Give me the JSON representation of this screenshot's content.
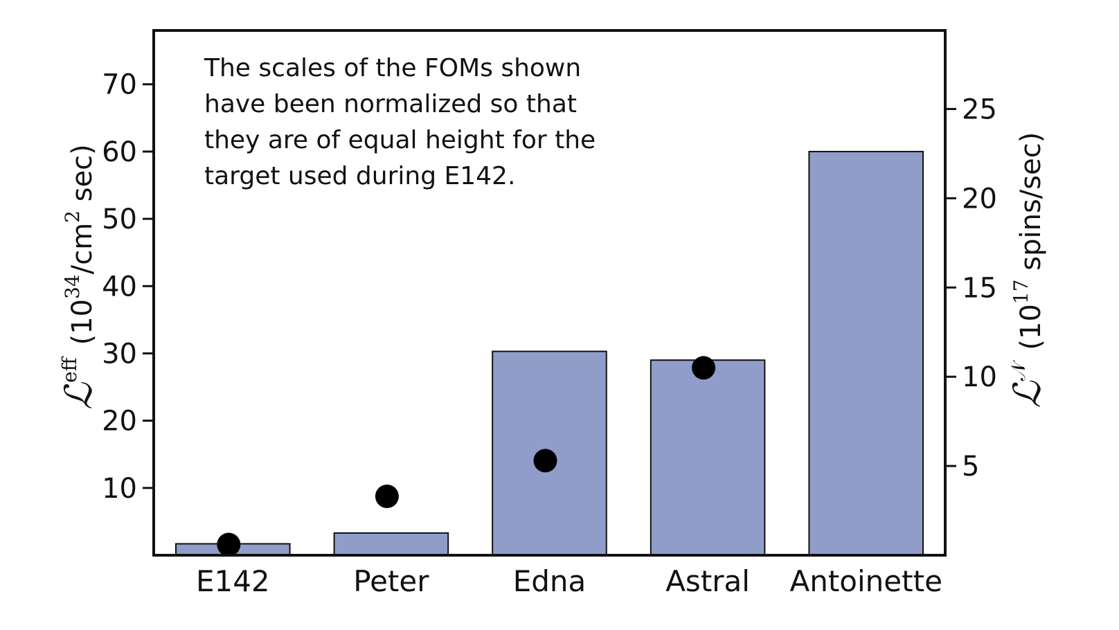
{
  "chart_data": {
    "type": "bar",
    "categories": [
      "E142",
      "Peter",
      "Edna",
      "Astral",
      "Antoinette"
    ],
    "series": [
      {
        "values": [
          1.7,
          3.3,
          30.3,
          29.0,
          60.0
        ],
        "axis": "left",
        "mark": "bar",
        "color": "#919dc9"
      },
      {
        "values": [
          0.6,
          3.3,
          5.3,
          10.5,
          null
        ],
        "axis": "right",
        "mark": "dot",
        "color": "#000000"
      }
    ],
    "y_left": {
      "label_symbol": "ℒ",
      "label_superscript": "eff",
      "label_units": "(10",
      "label_units_sup": "34",
      "label_units_rest": "/cm",
      "label_units_sup2": "2",
      "label_units_end": " sec)",
      "ylim": [
        0,
        78
      ],
      "ticks": [
        "10",
        "20",
        "30",
        "40",
        "50",
        "60",
        "70"
      ]
    },
    "y_right": {
      "label_symbol": "ℒ",
      "label_superscript": "𝒩",
      "label_units": "(10",
      "label_units_sup": "17",
      "label_units_end": " spins/sec)",
      "ylim": [
        0,
        29.4
      ],
      "ticks": [
        "5",
        "10",
        "15",
        "20",
        "25"
      ]
    },
    "annotation": [
      "The scales of the FOMs shown",
      "have been normalized so that",
      "they are of equal height for the",
      "target used during E142."
    ],
    "bar_color": "#919dc9",
    "dot_color": "#000000",
    "grid": false,
    "legend": "none"
  }
}
